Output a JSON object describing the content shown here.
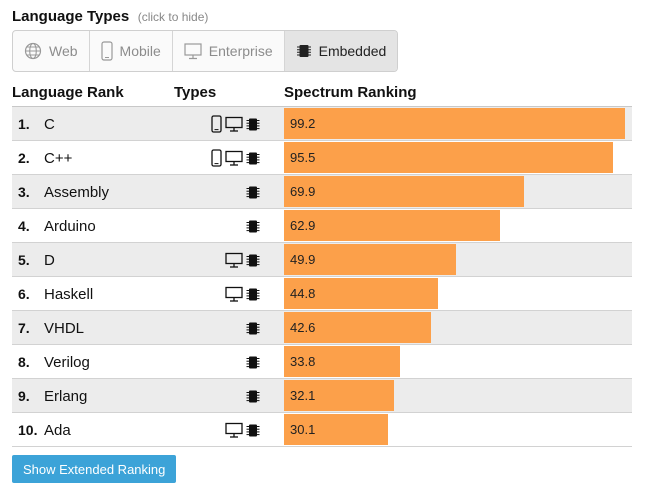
{
  "header": {
    "title": "Language Types",
    "hint": "(click to hide)"
  },
  "filters": [
    {
      "label": "Web",
      "icon": "globe-icon",
      "active": false
    },
    {
      "label": "Mobile",
      "icon": "mobile-icon",
      "active": false
    },
    {
      "label": "Enterprise",
      "icon": "desktop-icon",
      "active": false
    },
    {
      "label": "Embedded",
      "icon": "chip-icon",
      "active": true
    }
  ],
  "columns": {
    "rank": "Language Rank",
    "types": "Types",
    "spectrum": "Spectrum Ranking"
  },
  "colors": {
    "bar": "#fca04a",
    "button": "#3ca3d8"
  },
  "max_score": 100,
  "rows": [
    {
      "rank": "1.",
      "name": "C",
      "score": "99.2",
      "types": [
        "mobile",
        "desktop",
        "chip"
      ]
    },
    {
      "rank": "2.",
      "name": "C++",
      "score": "95.5",
      "types": [
        "mobile",
        "desktop",
        "chip"
      ]
    },
    {
      "rank": "3.",
      "name": "Assembly",
      "score": "69.9",
      "types": [
        "chip"
      ]
    },
    {
      "rank": "4.",
      "name": "Arduino",
      "score": "62.9",
      "types": [
        "chip"
      ]
    },
    {
      "rank": "5.",
      "name": "D",
      "score": "49.9",
      "types": [
        "desktop",
        "chip"
      ]
    },
    {
      "rank": "6.",
      "name": "Haskell",
      "score": "44.8",
      "types": [
        "desktop",
        "chip"
      ]
    },
    {
      "rank": "7.",
      "name": "VHDL",
      "score": "42.6",
      "types": [
        "chip"
      ]
    },
    {
      "rank": "8.",
      "name": "Verilog",
      "score": "33.8",
      "types": [
        "chip"
      ]
    },
    {
      "rank": "9.",
      "name": "Erlang",
      "score": "32.1",
      "types": [
        "chip"
      ]
    },
    {
      "rank": "10.",
      "name": "Ada",
      "score": "30.1",
      "types": [
        "desktop",
        "chip"
      ]
    }
  ],
  "extended_button": "Show Extended Ranking"
}
